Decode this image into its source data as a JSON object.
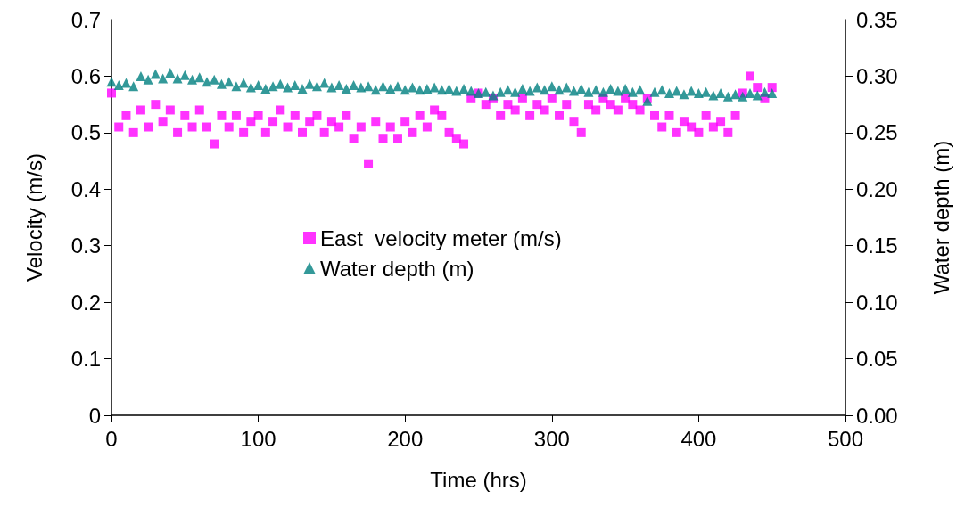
{
  "chart_data": {
    "type": "scatter",
    "xlabel": "Time (hrs)",
    "ylabel": "Velocity (m/s)",
    "y2label": "Water depth (m)",
    "xlim": [
      0,
      500
    ],
    "xticks": [
      0,
      100,
      200,
      300,
      400,
      500
    ],
    "ylim": [
      0,
      0.7
    ],
    "yticks": [
      0,
      0.1,
      0.2,
      0.3,
      0.4,
      0.5,
      0.6,
      0.7
    ],
    "y2lim": [
      0,
      0.35
    ],
    "y2ticks": [
      {
        "value": 0,
        "label": "0.00"
      },
      {
        "value": 0.05,
        "label": "0.05"
      },
      {
        "value": 0.1,
        "label": "0.10"
      },
      {
        "value": 0.15,
        "label": "0.15"
      },
      {
        "value": 0.2,
        "label": "0.20"
      },
      {
        "value": 0.25,
        "label": "0.25"
      },
      {
        "value": 0.3,
        "label": "0.30"
      },
      {
        "value": 0.35,
        "label": "0.35"
      }
    ],
    "grid": false,
    "legend": "center",
    "series": [
      {
        "name": "East  velocity meter (m/s)",
        "color": "#ff00ff",
        "marker": "square",
        "x": [
          0,
          5,
          10,
          15,
          20,
          25,
          30,
          35,
          40,
          45,
          50,
          55,
          60,
          65,
          70,
          75,
          80,
          85,
          90,
          95,
          100,
          105,
          110,
          115,
          120,
          125,
          130,
          135,
          140,
          145,
          150,
          155,
          160,
          165,
          170,
          175,
          180,
          185,
          190,
          195,
          200,
          205,
          210,
          215,
          220,
          225,
          230,
          235,
          240,
          245,
          250,
          255,
          260,
          265,
          270,
          275,
          280,
          285,
          290,
          295,
          300,
          305,
          310,
          315,
          320,
          325,
          330,
          335,
          340,
          345,
          350,
          355,
          360,
          365,
          370,
          375,
          380,
          385,
          390,
          395,
          400,
          405,
          410,
          415,
          420,
          425,
          430,
          435,
          440,
          445,
          450
        ],
        "values": [
          0.57,
          0.51,
          0.53,
          0.5,
          0.54,
          0.51,
          0.55,
          0.52,
          0.54,
          0.5,
          0.53,
          0.51,
          0.54,
          0.51,
          0.48,
          0.53,
          0.51,
          0.53,
          0.5,
          0.52,
          0.53,
          0.5,
          0.52,
          0.54,
          0.51,
          0.53,
          0.5,
          0.52,
          0.53,
          0.5,
          0.52,
          0.51,
          0.53,
          0.49,
          0.51,
          0.445,
          0.52,
          0.49,
          0.51,
          0.49,
          0.52,
          0.5,
          0.53,
          0.51,
          0.54,
          0.53,
          0.5,
          0.49,
          0.48,
          0.56,
          0.57,
          0.55,
          0.56,
          0.53,
          0.55,
          0.54,
          0.56,
          0.53,
          0.55,
          0.54,
          0.56,
          0.53,
          0.55,
          0.52,
          0.5,
          0.55,
          0.54,
          0.56,
          0.55,
          0.54,
          0.56,
          0.55,
          0.54,
          0.56,
          0.53,
          0.51,
          0.53,
          0.5,
          0.52,
          0.51,
          0.5,
          0.53,
          0.51,
          0.52,
          0.5,
          0.53,
          0.57,
          0.6,
          0.58,
          0.56,
          0.58
        ]
      },
      {
        "name": "Water depth (m)",
        "color": "#008080",
        "marker": "triangle",
        "axis": "y2",
        "x": [
          0,
          5,
          10,
          15,
          20,
          25,
          30,
          35,
          40,
          45,
          50,
          55,
          60,
          65,
          70,
          75,
          80,
          85,
          90,
          95,
          100,
          105,
          110,
          115,
          120,
          125,
          130,
          135,
          140,
          145,
          150,
          155,
          160,
          165,
          170,
          175,
          180,
          185,
          190,
          195,
          200,
          205,
          210,
          215,
          220,
          225,
          230,
          235,
          240,
          245,
          250,
          255,
          260,
          265,
          270,
          275,
          280,
          285,
          290,
          295,
          300,
          305,
          310,
          315,
          320,
          325,
          330,
          335,
          340,
          345,
          350,
          355,
          360,
          365,
          370,
          375,
          380,
          385,
          390,
          395,
          400,
          405,
          410,
          415,
          420,
          425,
          430,
          435,
          440,
          445,
          450
        ],
        "values": [
          0.295,
          0.292,
          0.294,
          0.291,
          0.3,
          0.297,
          0.302,
          0.298,
          0.303,
          0.298,
          0.301,
          0.297,
          0.299,
          0.295,
          0.297,
          0.293,
          0.295,
          0.291,
          0.294,
          0.29,
          0.292,
          0.289,
          0.291,
          0.293,
          0.29,
          0.292,
          0.289,
          0.293,
          0.291,
          0.294,
          0.29,
          0.292,
          0.289,
          0.292,
          0.29,
          0.291,
          0.288,
          0.291,
          0.289,
          0.291,
          0.288,
          0.29,
          0.288,
          0.289,
          0.29,
          0.288,
          0.289,
          0.287,
          0.289,
          0.287,
          0.285,
          0.286,
          0.283,
          0.286,
          0.288,
          0.286,
          0.289,
          0.287,
          0.29,
          0.288,
          0.291,
          0.288,
          0.29,
          0.287,
          0.289,
          0.286,
          0.288,
          0.286,
          0.289,
          0.287,
          0.289,
          0.286,
          0.288,
          0.278,
          0.286,
          0.288,
          0.285,
          0.287,
          0.284,
          0.287,
          0.285,
          0.286,
          0.283,
          0.285,
          0.282,
          0.284,
          0.282,
          0.285,
          0.283,
          0.286,
          0.285
        ]
      }
    ]
  }
}
